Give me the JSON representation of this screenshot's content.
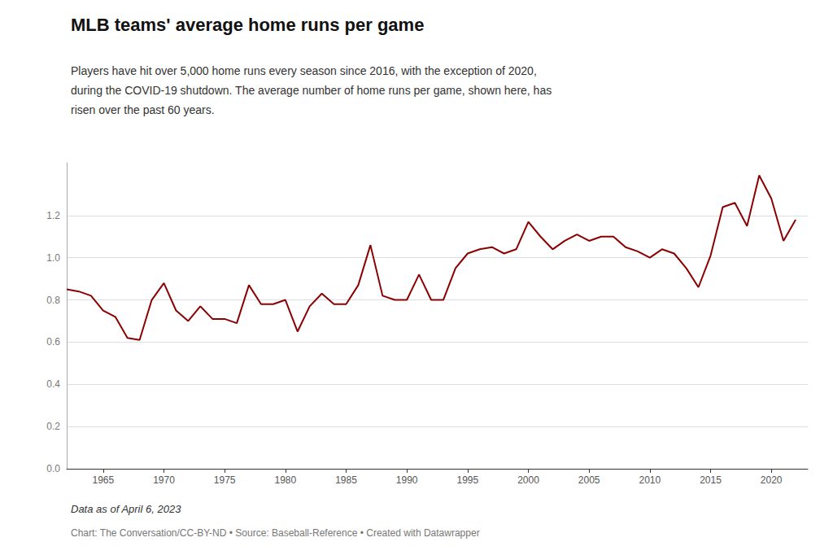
{
  "chart_data": {
    "type": "line",
    "title": "MLB teams' average home runs per game",
    "subtitle": "Players have hit over 5,000 home runs every season since 2016, with the exception of 2020,\nduring the COVID-19 shutdown. The average number of home runs per game, shown here, has\nrisen over the past 60 years.",
    "annotations": [
      "Data as of April 6, 2023",
      "Chart: The Conversation/CC-BY-ND • Source: Baseball-Reference • Created with Datawrapper"
    ],
    "color": "#8B0000",
    "x": [
      1962,
      1963,
      1964,
      1965,
      1966,
      1967,
      1968,
      1969,
      1970,
      1971,
      1972,
      1973,
      1974,
      1975,
      1976,
      1977,
      1978,
      1979,
      1980,
      1981,
      1982,
      1983,
      1984,
      1985,
      1986,
      1987,
      1988,
      1989,
      1990,
      1991,
      1992,
      1993,
      1994,
      1995,
      1996,
      1997,
      1998,
      1999,
      2000,
      2001,
      2002,
      2003,
      2004,
      2005,
      2006,
      2007,
      2008,
      2009,
      2010,
      2011,
      2012,
      2013,
      2014,
      2015,
      2016,
      2017,
      2018,
      2019,
      2020,
      2021,
      2022
    ],
    "values": [
      0.85,
      0.84,
      0.82,
      0.75,
      0.72,
      0.62,
      0.61,
      0.8,
      0.88,
      0.75,
      0.7,
      0.77,
      0.71,
      0.71,
      0.69,
      0.87,
      0.78,
      0.78,
      0.8,
      0.65,
      0.77,
      0.83,
      0.78,
      0.78,
      0.87,
      1.06,
      0.82,
      0.8,
      0.8,
      0.92,
      0.8,
      0.8,
      0.95,
      1.02,
      1.04,
      1.05,
      1.02,
      1.04,
      1.17,
      1.1,
      1.04,
      1.08,
      1.11,
      1.08,
      1.1,
      1.1,
      1.05,
      1.03,
      1.0,
      1.04,
      1.02,
      0.95,
      0.86,
      1.01,
      1.24,
      1.26,
      1.15,
      1.39,
      1.28,
      1.08,
      1.18
    ],
    "xlim": [
      1962,
      2023
    ],
    "xticks": [
      1965,
      1970,
      1975,
      1980,
      1985,
      1990,
      1995,
      2000,
      2005,
      2010,
      2015,
      2020
    ],
    "ylim": [
      0.0,
      1.45
    ],
    "yticks": [
      {
        "value": 0,
        "label": "0.0"
      },
      0.2,
      0.4,
      0.6,
      0.8,
      {
        "value": 1,
        "label": "1.0"
      },
      1.2
    ],
    "grid": true
  }
}
